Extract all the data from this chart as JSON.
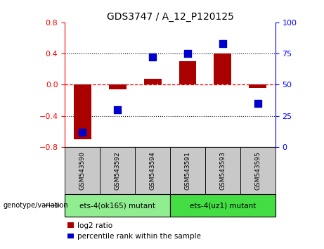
{
  "title": "GDS3747 / A_12_P120125",
  "samples": [
    "GSM543590",
    "GSM543592",
    "GSM543594",
    "GSM543591",
    "GSM543593",
    "GSM543595"
  ],
  "log2_ratio": [
    -0.7,
    -0.06,
    0.08,
    0.3,
    0.4,
    -0.04
  ],
  "percentile": [
    12,
    30,
    72,
    75,
    83,
    35
  ],
  "bar_color": "#aa0000",
  "dot_color": "#0000cc",
  "ylim_left": [
    -0.8,
    0.8
  ],
  "ylim_right": [
    0,
    100
  ],
  "yticks_left": [
    -0.8,
    -0.4,
    0.0,
    0.4,
    0.8
  ],
  "yticks_right": [
    0,
    25,
    50,
    75,
    100
  ],
  "group1_label": "ets-4(ok165) mutant",
  "group2_label": "ets-4(uz1) mutant",
  "group1_indices": [
    0,
    1,
    2
  ],
  "group2_indices": [
    3,
    4,
    5
  ],
  "group1_color": "#90ee90",
  "group2_color": "#44dd44",
  "group_bg_color": "#c8c8c8",
  "legend_log2_label": "log2 ratio",
  "legend_pct_label": "percentile rank within the sample",
  "xlabel_area_label": "genotype/variation",
  "bar_width": 0.5,
  "dot_size": 50
}
